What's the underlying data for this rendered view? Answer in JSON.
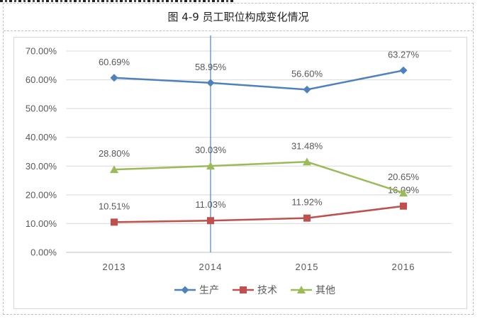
{
  "caption": "图  4-9  员工职位构成变化情况",
  "chart_data": {
    "type": "line",
    "categories": [
      "2013",
      "2014",
      "2015",
      "2016"
    ],
    "ylim": [
      0,
      70
    ],
    "y_ticks": [
      0,
      10,
      20,
      30,
      40,
      50,
      60,
      70
    ],
    "y_tick_labels": [
      "0.00%",
      "10.00%",
      "20.00%",
      "30.00%",
      "40.00%",
      "50.00%",
      "60.00%",
      "70.00%"
    ],
    "grid": true,
    "legend_position": "bottom",
    "series": [
      {
        "name": "生产",
        "color": "#4f81bd",
        "marker": "diamond",
        "values": [
          60.69,
          58.95,
          56.6,
          63.27
        ],
        "labels": [
          "60.69%",
          "58.95%",
          "56.60%",
          "63.27%"
        ]
      },
      {
        "name": "技术",
        "color": "#c0504d",
        "marker": "square",
        "values": [
          10.51,
          11.03,
          11.92,
          16.09
        ],
        "labels": [
          "10.51%",
          "11.03%",
          "11.92%",
          "16.09%"
        ]
      },
      {
        "name": "其他",
        "color": "#9bbb59",
        "marker": "triangle",
        "values": [
          28.8,
          30.03,
          31.48,
          20.65
        ],
        "labels": [
          "28.80%",
          "30.03%",
          "31.48%",
          "20.65%"
        ]
      }
    ],
    "reference_line": {
      "x_category": "2014",
      "color": "#4f81bd"
    }
  }
}
